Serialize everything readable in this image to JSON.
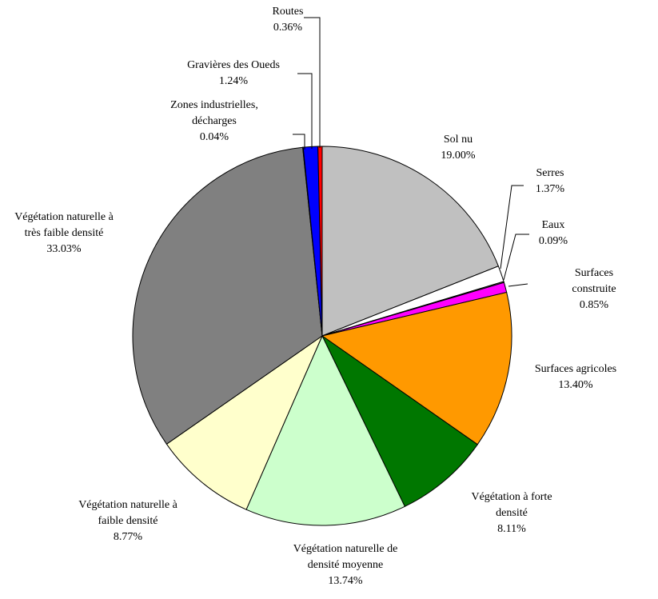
{
  "chart_data": {
    "type": "pie",
    "categories": [
      "Sol nu",
      "Serres",
      "Eaux",
      "Surfaces construite",
      "Surfaces agricoles",
      "Végétation à forte\ndensité",
      "Végétation naturelle de\ndensité moyenne",
      "Végétation naturelle à\nfaible densité",
      "Végétation naturelle à\ntrès faible densité",
      "Zones industrielles,\ndécharges",
      "Gravières des Oueds",
      "Routes"
    ],
    "values": [
      19.0,
      1.37,
      0.09,
      0.85,
      13.4,
      8.11,
      13.74,
      8.77,
      33.03,
      0.04,
      1.24,
      0.36
    ],
    "value_labels": [
      "19.00%",
      "1.37%",
      "0.09%",
      "0.85%",
      "13.40%",
      "8.11%",
      "13.74%",
      "8.77%",
      "33.03%",
      "0.04%",
      "1.24%",
      "0.36%"
    ],
    "colors": [
      "#c0c0c0",
      "#ffffff",
      "#808080",
      "#ff00ff",
      "#ff9900",
      "#007700",
      "#ccffcc",
      "#ffffcc",
      "#808080",
      "#000000",
      "#0000ff",
      "#ff0000"
    ]
  }
}
